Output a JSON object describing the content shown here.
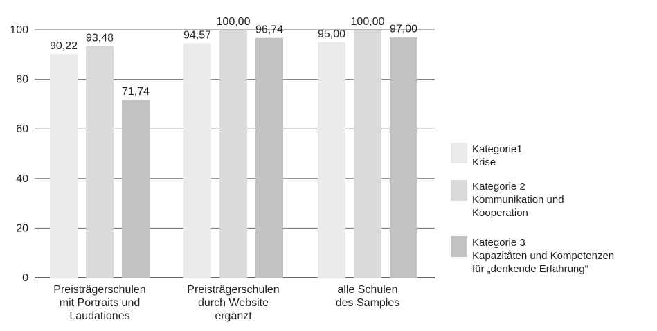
{
  "chart_data": {
    "type": "bar",
    "title": "",
    "xlabel": "",
    "ylabel": "",
    "ylim": [
      0,
      100
    ],
    "yticks": [
      "0",
      "20",
      "40",
      "60",
      "80",
      "100"
    ],
    "grid": true,
    "legend_position": "right",
    "categories": [
      [
        "Preisträgerschulen",
        "mit Portraits und",
        "Laudationes"
      ],
      [
        "Preisträgerschulen",
        "durch Website",
        "ergänzt"
      ],
      [
        "alle Schulen",
        "des Samples"
      ]
    ],
    "series": [
      {
        "name": [
          "Kategorie1",
          "Krise"
        ],
        "color": "#ebebeb",
        "values": [
          90.22,
          94.57,
          95.0
        ],
        "labels": [
          "90,22",
          "94,57",
          "95,00"
        ]
      },
      {
        "name": [
          "Kategorie 2",
          "Kommunikation und",
          "Kooperation"
        ],
        "color": "#d9d9d9",
        "values": [
          93.48,
          100.0,
          100.0
        ],
        "labels": [
          "93,48",
          "100,00",
          "100,00"
        ]
      },
      {
        "name": [
          "Kategorie 3",
          "Kapazitäten und Kompetenzen",
          "für „denkende Erfahrung“"
        ],
        "color": "#c2c2c2",
        "values": [
          71.74,
          96.74,
          97.0
        ],
        "labels": [
          "71,74",
          "96,74",
          "97,00"
        ]
      }
    ]
  }
}
